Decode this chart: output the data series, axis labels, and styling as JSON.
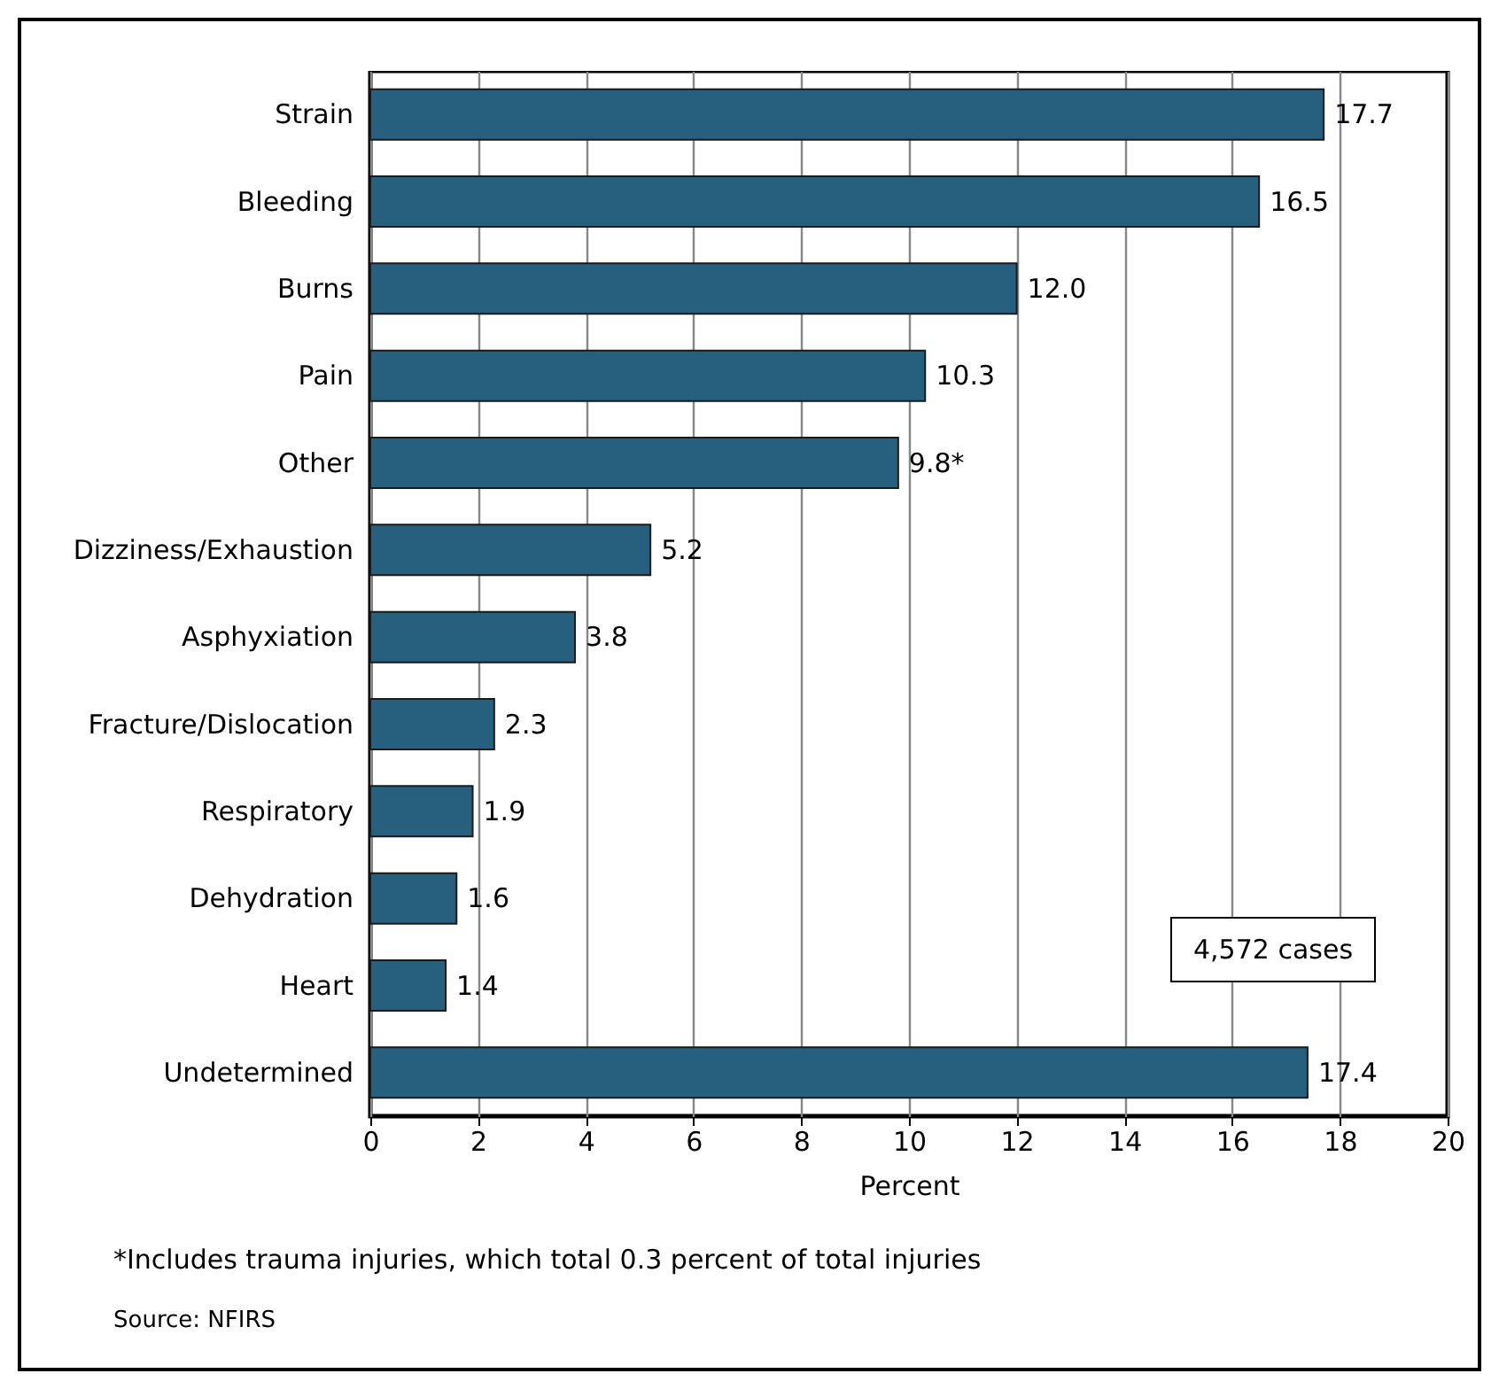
{
  "chart_data": {
    "type": "bar",
    "orientation": "horizontal",
    "xlabel": "Percent",
    "categories": [
      "Strain",
      "Bleeding",
      "Burns",
      "Pain",
      "Other",
      "Dizziness/Exhaustion",
      "Asphyxiation",
      "Fracture/Dislocation",
      "Respiratory",
      "Dehydration",
      "Heart",
      "Undetermined"
    ],
    "values": [
      17.7,
      16.5,
      12.0,
      10.3,
      9.8,
      5.2,
      3.8,
      2.3,
      1.9,
      1.6,
      1.4,
      17.4
    ],
    "value_labels": [
      "17.7",
      "16.5",
      "12.0",
      "10.3",
      "9.8*",
      "5.2",
      "3.8",
      "2.3",
      "1.9",
      "1.6",
      "1.4",
      "17.4"
    ],
    "color": "#27607f",
    "xlim": [
      0,
      20
    ],
    "xticks": [
      0,
      2,
      4,
      6,
      8,
      10,
      12,
      14,
      16,
      18,
      20
    ],
    "grid": "x",
    "annotations": [
      "4,572 cases",
      "*Includes trauma injuries, which total 0.3 percent of total injuries",
      "Source: NFIRS"
    ]
  }
}
